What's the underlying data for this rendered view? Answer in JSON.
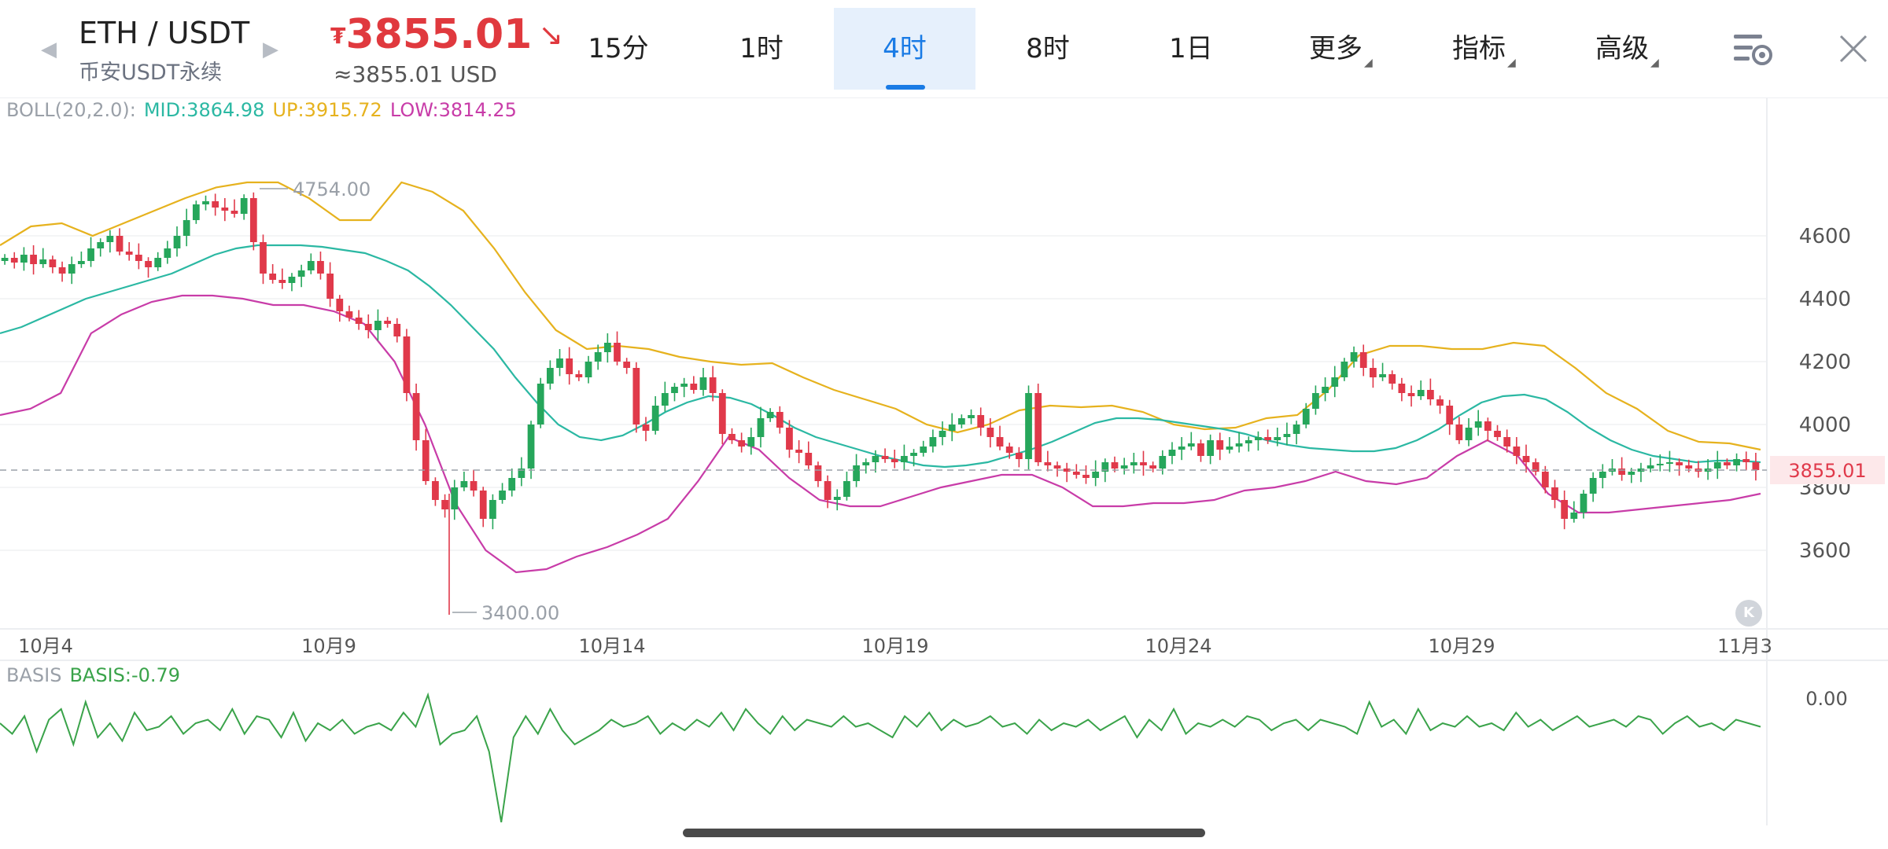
{
  "header": {
    "pair": "ETH / USDT",
    "subtitle": "币安USDT永续",
    "price_prefix": "₮",
    "price": "3855.01",
    "trend_icon": "down-right-arrow-icon",
    "price_usd": "≈3855.01 USD",
    "price_color": "#e0393e"
  },
  "tabs": [
    {
      "label": "15分",
      "active": false
    },
    {
      "label": "1时",
      "active": false
    },
    {
      "label": "4时",
      "active": true
    },
    {
      "label": "8时",
      "active": false
    },
    {
      "label": "1日",
      "active": false
    },
    {
      "label": "更多",
      "active": false,
      "dropdown": true
    },
    {
      "label": "指标",
      "active": false,
      "dropdown": true
    },
    {
      "label": "高级",
      "active": false,
      "dropdown": true
    }
  ],
  "icons": {
    "settings": "chart-settings-icon",
    "close": "close-icon",
    "prev": "chevron-left-icon",
    "next": "chevron-right-icon"
  },
  "boll": {
    "label": "BOLL(20,2.0):",
    "mid": "MID:3864.98",
    "up": "UP:3915.72",
    "low": "LOW:3814.25",
    "colors": {
      "mid": "#2bb8a3",
      "up": "#e6b21e",
      "low": "#c83ca8"
    }
  },
  "basis": {
    "label": "BASIS",
    "value": "BASIS:-0.79",
    "axis_label": "0.00",
    "color": "#3aa34a"
  },
  "badge": "K",
  "chart_data": {
    "type": "candlestick",
    "interval": "4时",
    "y_ticks": [
      "4600",
      "4400",
      "4200",
      "4000",
      "3800",
      "3600"
    ],
    "x_ticks": [
      "10月4",
      "10月9",
      "10月14",
      "10月19",
      "10月24",
      "10月29",
      "11月3"
    ],
    "last_price": "3855.01",
    "max_label": "4754.00",
    "min_label": "3400.00",
    "ylim": [
      3400,
      4800
    ],
    "closes": [
      4530,
      4515,
      4540,
      4510,
      4525,
      4500,
      4480,
      4510,
      4520,
      4560,
      4580,
      4600,
      4550,
      4540,
      4520,
      4500,
      4530,
      4560,
      4600,
      4650,
      4700,
      4710,
      4690,
      4680,
      4670,
      4720,
      4580,
      4480,
      4460,
      4450,
      4470,
      4490,
      4520,
      4480,
      4400,
      4360,
      4340,
      4320,
      4300,
      4330,
      4320,
      4280,
      4100,
      3950,
      3820,
      3760,
      3730,
      3800,
      3820,
      3790,
      3700,
      3760,
      3790,
      3830,
      3860,
      4000,
      4130,
      4180,
      4210,
      4160,
      4150,
      4200,
      4230,
      4260,
      4200,
      4180,
      4000,
      3980,
      4060,
      4100,
      4120,
      4130,
      4110,
      4150,
      4100,
      3970,
      3950,
      3930,
      3960,
      4020,
      4040,
      3990,
      3920,
      3910,
      3870,
      3820,
      3760,
      3770,
      3820,
      3870,
      3880,
      3900,
      3890,
      3880,
      3900,
      3910,
      3930,
      3960,
      3980,
      4000,
      4020,
      4030,
      3990,
      3960,
      3930,
      3910,
      3890,
      4100,
      3880,
      3870,
      3860,
      3850,
      3840,
      3830,
      3850,
      3880,
      3860,
      3870,
      3880,
      3870,
      3860,
      3900,
      3920,
      3930,
      3940,
      3900,
      3950,
      3920,
      3930,
      3940,
      3950,
      3960,
      3950,
      3960,
      3970,
      4000,
      4050,
      4100,
      4120,
      4150,
      4200,
      4230,
      4180,
      4150,
      4160,
      4130,
      4100,
      4090,
      4110,
      4080,
      4060,
      4000,
      3950,
      3990,
      4010,
      3980,
      3960,
      3930,
      3900,
      3880,
      3850,
      3800,
      3760,
      3700,
      3720,
      3780,
      3830,
      3850,
      3860,
      3840,
      3850,
      3860,
      3870,
      3875,
      3880,
      3870,
      3860,
      3850,
      3860,
      3880,
      3870,
      3890,
      3880,
      3855.01
    ],
    "boll_mid": [
      4290,
      4310,
      4340,
      4370,
      4400,
      4420,
      4440,
      4460,
      4480,
      4510,
      4540,
      4560,
      4570,
      4570,
      4570,
      4565,
      4555,
      4545,
      4520,
      4490,
      4440,
      4380,
      4310,
      4240,
      4150,
      4070,
      4000,
      3960,
      3950,
      3965,
      4000,
      4040,
      4070,
      4090,
      4085,
      4065,
      4030,
      3990,
      3960,
      3940,
      3920,
      3900,
      3885,
      3870,
      3865,
      3870,
      3880,
      3900,
      3920,
      3945,
      3975,
      4005,
      4020,
      4020,
      4015,
      4005,
      3995,
      3985,
      3970,
      3950,
      3935,
      3925,
      3920,
      3915,
      3915,
      3925,
      3950,
      3985,
      4030,
      4070,
      4090,
      4095,
      4080,
      4040,
      3990,
      3950,
      3920,
      3900,
      3890,
      3880,
      3885,
      3885,
      3880
    ],
    "boll_up": [
      4570,
      4630,
      4640,
      4600,
      4640,
      4680,
      4720,
      4754,
      4770,
      4770,
      4720,
      4650,
      4650,
      4770,
      4740,
      4680,
      4560,
      4420,
      4300,
      4240,
      4250,
      4240,
      4215,
      4200,
      4190,
      4195,
      4150,
      4110,
      4080,
      4050,
      4000,
      3975,
      4000,
      4045,
      4060,
      4055,
      4060,
      4040,
      4000,
      3985,
      3990,
      4020,
      4030,
      4110,
      4220,
      4250,
      4250,
      4240,
      4240,
      4260,
      4250,
      4180,
      4100,
      4050,
      3980,
      3945,
      3940,
      3920
    ],
    "boll_low": [
      4030,
      4050,
      4100,
      4290,
      4350,
      4390,
      4410,
      4410,
      4400,
      4380,
      4380,
      4360,
      4320,
      4200,
      4000,
      3750,
      3600,
      3530,
      3540,
      3580,
      3610,
      3650,
      3700,
      3820,
      3960,
      3920,
      3830,
      3760,
      3740,
      3740,
      3770,
      3800,
      3820,
      3840,
      3840,
      3800,
      3740,
      3740,
      3750,
      3750,
      3760,
      3790,
      3800,
      3820,
      3850,
      3820,
      3810,
      3830,
      3900,
      3950,
      3900,
      3780,
      3720,
      3720,
      3730,
      3740,
      3750,
      3760,
      3780
    ],
    "basis_values": [
      0,
      -3,
      2,
      -8,
      1,
      4,
      -6,
      6,
      -4,
      0,
      -5,
      3,
      -2,
      -1,
      2,
      -3,
      0,
      1,
      -2,
      4,
      -3,
      2,
      1,
      -4,
      3,
      -5,
      0,
      -2,
      1,
      -3,
      -1,
      0,
      -2,
      3,
      -1,
      8,
      -6,
      -3,
      -2,
      2,
      -8,
      -28,
      -4,
      2,
      -3,
      4,
      -2,
      -6,
      -4,
      -2,
      1,
      -1,
      0,
      2,
      -3,
      0,
      -2,
      1,
      -1,
      3,
      -2,
      4,
      0,
      -3,
      2,
      -2,
      1,
      0,
      -1,
      2,
      -1,
      0,
      -2,
      -4,
      2,
      -1,
      3,
      -2,
      1,
      -1,
      0,
      2,
      -1,
      0,
      -3,
      1,
      -2,
      0,
      -1,
      1,
      -2,
      0,
      2,
      -4,
      1,
      -2,
      4,
      -3,
      0,
      -1,
      1,
      -1,
      2,
      1,
      -2,
      0,
      1,
      -2,
      1,
      0,
      -1,
      -3,
      6,
      -1,
      1,
      -3,
      4,
      -2,
      0,
      -1,
      2,
      -1,
      0,
      -2,
      3,
      -1,
      1,
      -2,
      0,
      2,
      -1,
      0,
      1,
      -1,
      2,
      1,
      -3,
      0,
      2,
      -1,
      0,
      -2,
      1,
      0,
      -1
    ]
  }
}
